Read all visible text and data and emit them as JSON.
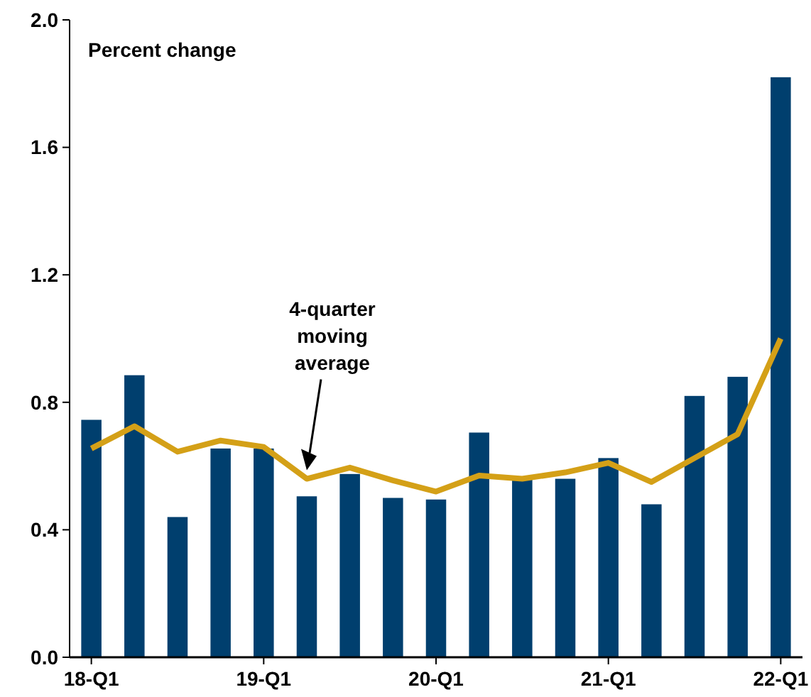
{
  "chart_data": {
    "type": "bar",
    "ylabel": "Percent change",
    "categories": [
      "18-Q1",
      null,
      null,
      null,
      "19-Q1",
      null,
      null,
      null,
      "20-Q1",
      null,
      null,
      null,
      "21-Q1",
      null,
      null,
      null,
      "22-Q1"
    ],
    "series": [
      {
        "color": "#003f6e",
        "values": [
          0.745,
          0.885,
          0.44,
          0.655,
          0.655,
          0.505,
          0.575,
          0.5,
          0.495,
          0.705,
          0.56,
          0.56,
          0.625,
          0.48,
          0.82,
          0.88,
          1.82
        ]
      },
      {
        "type": "line",
        "name": "4-quarter moving average",
        "color": "#d4a017",
        "values": [
          0.655,
          0.725,
          0.645,
          0.68,
          0.66,
          0.56,
          0.595,
          0.555,
          0.52,
          0.57,
          0.56,
          0.58,
          0.61,
          0.55,
          0.625,
          0.7,
          1.0
        ]
      }
    ],
    "ylim": [
      0,
      2.0
    ],
    "yticks": [
      {
        "value": 0,
        "label": "0.0"
      },
      0.4,
      0.8,
      1.2,
      1.6,
      {
        "value": 2,
        "label": "2.0"
      }
    ],
    "grid": false,
    "marker": "none",
    "line_style": "solid"
  }
}
